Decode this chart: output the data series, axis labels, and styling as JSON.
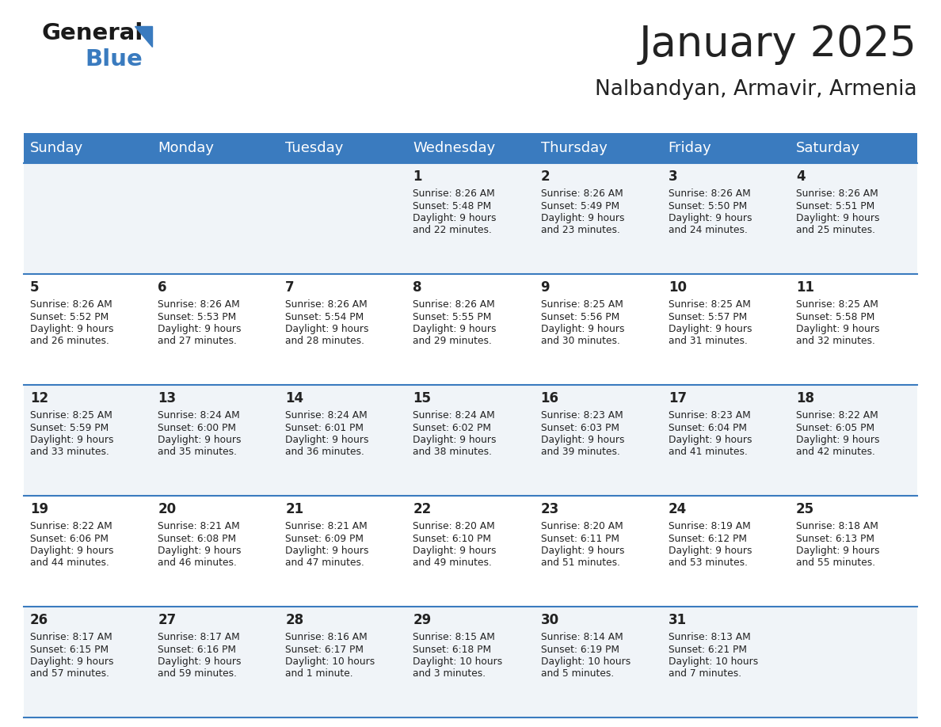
{
  "title": "January 2025",
  "subtitle": "Nalbandyan, Armavir, Armenia",
  "header_bg": "#3A7BBF",
  "header_text": "#FFFFFF",
  "row_bg_odd": "#F0F4F8",
  "row_bg_even": "#FFFFFF",
  "text_color": "#222222",
  "day_headers": [
    "Sunday",
    "Monday",
    "Tuesday",
    "Wednesday",
    "Thursday",
    "Friday",
    "Saturday"
  ],
  "days": [
    {
      "day": 1,
      "col": 3,
      "row": 0,
      "sunrise": "8:26 AM",
      "sunset": "5:48 PM",
      "daylight_hours": 9,
      "daylight_minutes": 22
    },
    {
      "day": 2,
      "col": 4,
      "row": 0,
      "sunrise": "8:26 AM",
      "sunset": "5:49 PM",
      "daylight_hours": 9,
      "daylight_minutes": 23
    },
    {
      "day": 3,
      "col": 5,
      "row": 0,
      "sunrise": "8:26 AM",
      "sunset": "5:50 PM",
      "daylight_hours": 9,
      "daylight_minutes": 24
    },
    {
      "day": 4,
      "col": 6,
      "row": 0,
      "sunrise": "8:26 AM",
      "sunset": "5:51 PM",
      "daylight_hours": 9,
      "daylight_minutes": 25
    },
    {
      "day": 5,
      "col": 0,
      "row": 1,
      "sunrise": "8:26 AM",
      "sunset": "5:52 PM",
      "daylight_hours": 9,
      "daylight_minutes": 26
    },
    {
      "day": 6,
      "col": 1,
      "row": 1,
      "sunrise": "8:26 AM",
      "sunset": "5:53 PM",
      "daylight_hours": 9,
      "daylight_minutes": 27
    },
    {
      "day": 7,
      "col": 2,
      "row": 1,
      "sunrise": "8:26 AM",
      "sunset": "5:54 PM",
      "daylight_hours": 9,
      "daylight_minutes": 28
    },
    {
      "day": 8,
      "col": 3,
      "row": 1,
      "sunrise": "8:26 AM",
      "sunset": "5:55 PM",
      "daylight_hours": 9,
      "daylight_minutes": 29
    },
    {
      "day": 9,
      "col": 4,
      "row": 1,
      "sunrise": "8:25 AM",
      "sunset": "5:56 PM",
      "daylight_hours": 9,
      "daylight_minutes": 30
    },
    {
      "day": 10,
      "col": 5,
      "row": 1,
      "sunrise": "8:25 AM",
      "sunset": "5:57 PM",
      "daylight_hours": 9,
      "daylight_minutes": 31
    },
    {
      "day": 11,
      "col": 6,
      "row": 1,
      "sunrise": "8:25 AM",
      "sunset": "5:58 PM",
      "daylight_hours": 9,
      "daylight_minutes": 32
    },
    {
      "day": 12,
      "col": 0,
      "row": 2,
      "sunrise": "8:25 AM",
      "sunset": "5:59 PM",
      "daylight_hours": 9,
      "daylight_minutes": 33
    },
    {
      "day": 13,
      "col": 1,
      "row": 2,
      "sunrise": "8:24 AM",
      "sunset": "6:00 PM",
      "daylight_hours": 9,
      "daylight_minutes": 35
    },
    {
      "day": 14,
      "col": 2,
      "row": 2,
      "sunrise": "8:24 AM",
      "sunset": "6:01 PM",
      "daylight_hours": 9,
      "daylight_minutes": 36
    },
    {
      "day": 15,
      "col": 3,
      "row": 2,
      "sunrise": "8:24 AM",
      "sunset": "6:02 PM",
      "daylight_hours": 9,
      "daylight_minutes": 38
    },
    {
      "day": 16,
      "col": 4,
      "row": 2,
      "sunrise": "8:23 AM",
      "sunset": "6:03 PM",
      "daylight_hours": 9,
      "daylight_minutes": 39
    },
    {
      "day": 17,
      "col": 5,
      "row": 2,
      "sunrise": "8:23 AM",
      "sunset": "6:04 PM",
      "daylight_hours": 9,
      "daylight_minutes": 41
    },
    {
      "day": 18,
      "col": 6,
      "row": 2,
      "sunrise": "8:22 AM",
      "sunset": "6:05 PM",
      "daylight_hours": 9,
      "daylight_minutes": 42
    },
    {
      "day": 19,
      "col": 0,
      "row": 3,
      "sunrise": "8:22 AM",
      "sunset": "6:06 PM",
      "daylight_hours": 9,
      "daylight_minutes": 44
    },
    {
      "day": 20,
      "col": 1,
      "row": 3,
      "sunrise": "8:21 AM",
      "sunset": "6:08 PM",
      "daylight_hours": 9,
      "daylight_minutes": 46
    },
    {
      "day": 21,
      "col": 2,
      "row": 3,
      "sunrise": "8:21 AM",
      "sunset": "6:09 PM",
      "daylight_hours": 9,
      "daylight_minutes": 47
    },
    {
      "day": 22,
      "col": 3,
      "row": 3,
      "sunrise": "8:20 AM",
      "sunset": "6:10 PM",
      "daylight_hours": 9,
      "daylight_minutes": 49
    },
    {
      "day": 23,
      "col": 4,
      "row": 3,
      "sunrise": "8:20 AM",
      "sunset": "6:11 PM",
      "daylight_hours": 9,
      "daylight_minutes": 51
    },
    {
      "day": 24,
      "col": 5,
      "row": 3,
      "sunrise": "8:19 AM",
      "sunset": "6:12 PM",
      "daylight_hours": 9,
      "daylight_minutes": 53
    },
    {
      "day": 25,
      "col": 6,
      "row": 3,
      "sunrise": "8:18 AM",
      "sunset": "6:13 PM",
      "daylight_hours": 9,
      "daylight_minutes": 55
    },
    {
      "day": 26,
      "col": 0,
      "row": 4,
      "sunrise": "8:17 AM",
      "sunset": "6:15 PM",
      "daylight_hours": 9,
      "daylight_minutes": 57
    },
    {
      "day": 27,
      "col": 1,
      "row": 4,
      "sunrise": "8:17 AM",
      "sunset": "6:16 PM",
      "daylight_hours": 9,
      "daylight_minutes": 59
    },
    {
      "day": 28,
      "col": 2,
      "row": 4,
      "sunrise": "8:16 AM",
      "sunset": "6:17 PM",
      "daylight_hours": 10,
      "daylight_minutes": 1
    },
    {
      "day": 29,
      "col": 3,
      "row": 4,
      "sunrise": "8:15 AM",
      "sunset": "6:18 PM",
      "daylight_hours": 10,
      "daylight_minutes": 3
    },
    {
      "day": 30,
      "col": 4,
      "row": 4,
      "sunrise": "8:14 AM",
      "sunset": "6:19 PM",
      "daylight_hours": 10,
      "daylight_minutes": 5
    },
    {
      "day": 31,
      "col": 5,
      "row": 4,
      "sunrise": "8:13 AM",
      "sunset": "6:21 PM",
      "daylight_hours": 10,
      "daylight_minutes": 7
    }
  ],
  "num_rows": 5,
  "num_cols": 7,
  "fig_width": 11.88,
  "fig_height": 9.18,
  "dpi": 100
}
